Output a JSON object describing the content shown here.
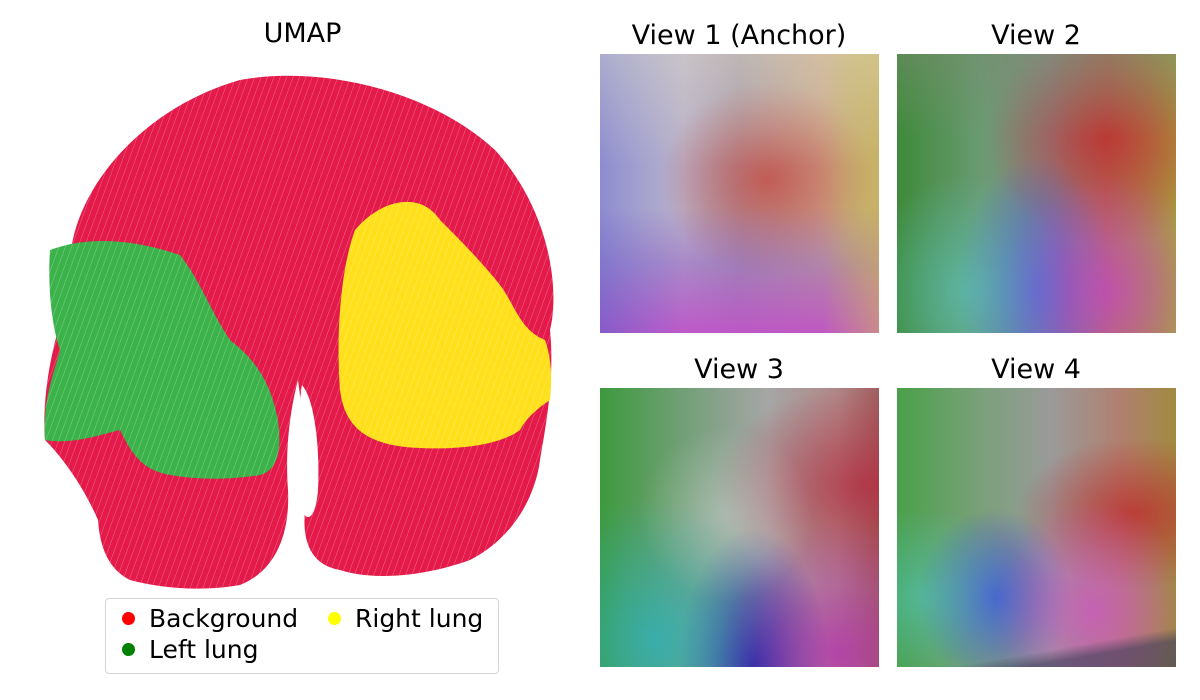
{
  "umap": {
    "title": "UMAP",
    "clusters": [
      {
        "name": "Background",
        "color": "#e31a4a"
      },
      {
        "name": "Left lung",
        "color": "#3bb34a"
      },
      {
        "name": "Right lung",
        "color": "#ffe01a"
      }
    ]
  },
  "legend": {
    "items": [
      {
        "label": "Background",
        "color": "#ff0000"
      },
      {
        "label": "Left lung",
        "color": "#008000"
      },
      {
        "label": "Right lung",
        "color": "#ffff00"
      }
    ]
  },
  "views": [
    {
      "title": "View 1 (Anchor)"
    },
    {
      "title": "View 2"
    },
    {
      "title": "View 3"
    },
    {
      "title": "View 4"
    }
  ]
}
